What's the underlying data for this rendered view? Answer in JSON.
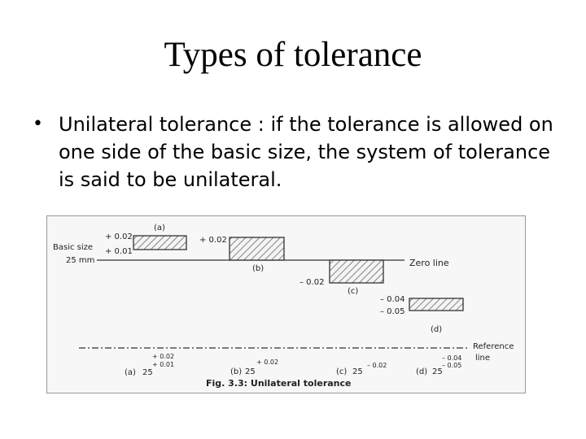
{
  "slide": {
    "title": "Types of tolerance",
    "bullet_symbol": "•",
    "bullet_text": "Unilateral tolerance : if the tolerance is allowed on one side of the basic size, the system of tolerance is said to be unilateral."
  },
  "figure": {
    "basic_size_label": "Basic size",
    "basic_size_value": "25 mm",
    "zero_line_label": "Zero line",
    "reference_line_label_1": "Reference",
    "reference_line_label_2": "line",
    "caption": "Fig. 3.3: Unilateral tolerance",
    "case_a": {
      "tag": "(a)",
      "upper": "+ 0.02",
      "lower": "+ 0.01",
      "bottom_tag": "(a)",
      "basic": "25",
      "bottom_upper": "+ 0.02",
      "bottom_lower": "+ 0.01"
    },
    "case_b": {
      "tag": "(b)",
      "upper": "+ 0.02",
      "bottom_tag": "(b)",
      "basic": "25",
      "bottom_upper": "+ 0.02"
    },
    "case_c": {
      "tag": "(c)",
      "lower": "– 0.02",
      "bottom_tag": "(c)",
      "basic": "25",
      "bottom_lower": "– 0.02"
    },
    "case_d": {
      "tag": "(d)",
      "upper": "– 0.04",
      "lower": "– 0.05",
      "bottom_tag": "(d)",
      "basic": "25",
      "bottom_upper": "– 0.04",
      "bottom_lower": "– 0.05"
    }
  }
}
